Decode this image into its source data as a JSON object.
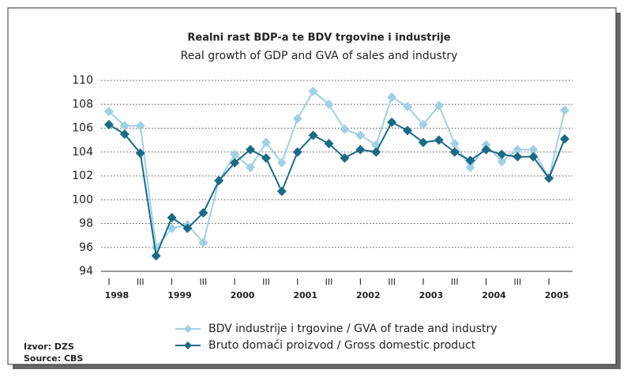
{
  "chart_data": {
    "type": "line",
    "title": "Realni rast BDP-a te BDV trgovine i industrije",
    "subtitle": "Real growth of GDP and GVA of sales and industry",
    "categories": [
      "I",
      null,
      "III",
      null,
      "I",
      null,
      "III",
      null,
      "I",
      null,
      "III",
      null,
      "I",
      null,
      "III",
      null,
      "I",
      null,
      "III",
      null,
      "I",
      null,
      "III",
      null,
      "I",
      null,
      "III",
      null,
      "I",
      null
    ],
    "years": [
      "1998",
      "1999",
      "2000",
      "2001",
      "2002",
      "2003",
      "2004",
      "2005"
    ],
    "series": [
      {
        "name": "BDV industrije i trgovine / GVA of trade and industry",
        "color": "#9fd0e4",
        "values": [
          107.4,
          106.2,
          106.2,
          96.0,
          97.6,
          97.9,
          96.4,
          101.6,
          103.8,
          102.7,
          104.8,
          103.1,
          106.8,
          109.1,
          108.0,
          105.9,
          105.4,
          104.6,
          108.6,
          107.8,
          106.3,
          107.9,
          104.7,
          102.7,
          104.6,
          103.2,
          104.2,
          104.2,
          101.8,
          107.5
        ]
      },
      {
        "name": "Bruto domaći proizvod / Gross domestic product",
        "color": "#1b6a86",
        "values": [
          106.3,
          105.5,
          103.9,
          95.3,
          98.5,
          97.6,
          98.9,
          101.6,
          103.1,
          104.2,
          103.5,
          100.7,
          104.0,
          105.4,
          104.7,
          103.5,
          104.2,
          104.0,
          106.5,
          105.8,
          104.8,
          105.0,
          104.0,
          103.3,
          104.2,
          103.8,
          103.6,
          103.6,
          101.8,
          105.1
        ]
      }
    ],
    "ylim": [
      94,
      110
    ],
    "yticks": [
      94,
      96,
      98,
      100,
      102,
      104,
      106,
      108,
      110
    ],
    "grid": true,
    "source": [
      "Izvor: DZS",
      "Source: CBS"
    ]
  }
}
